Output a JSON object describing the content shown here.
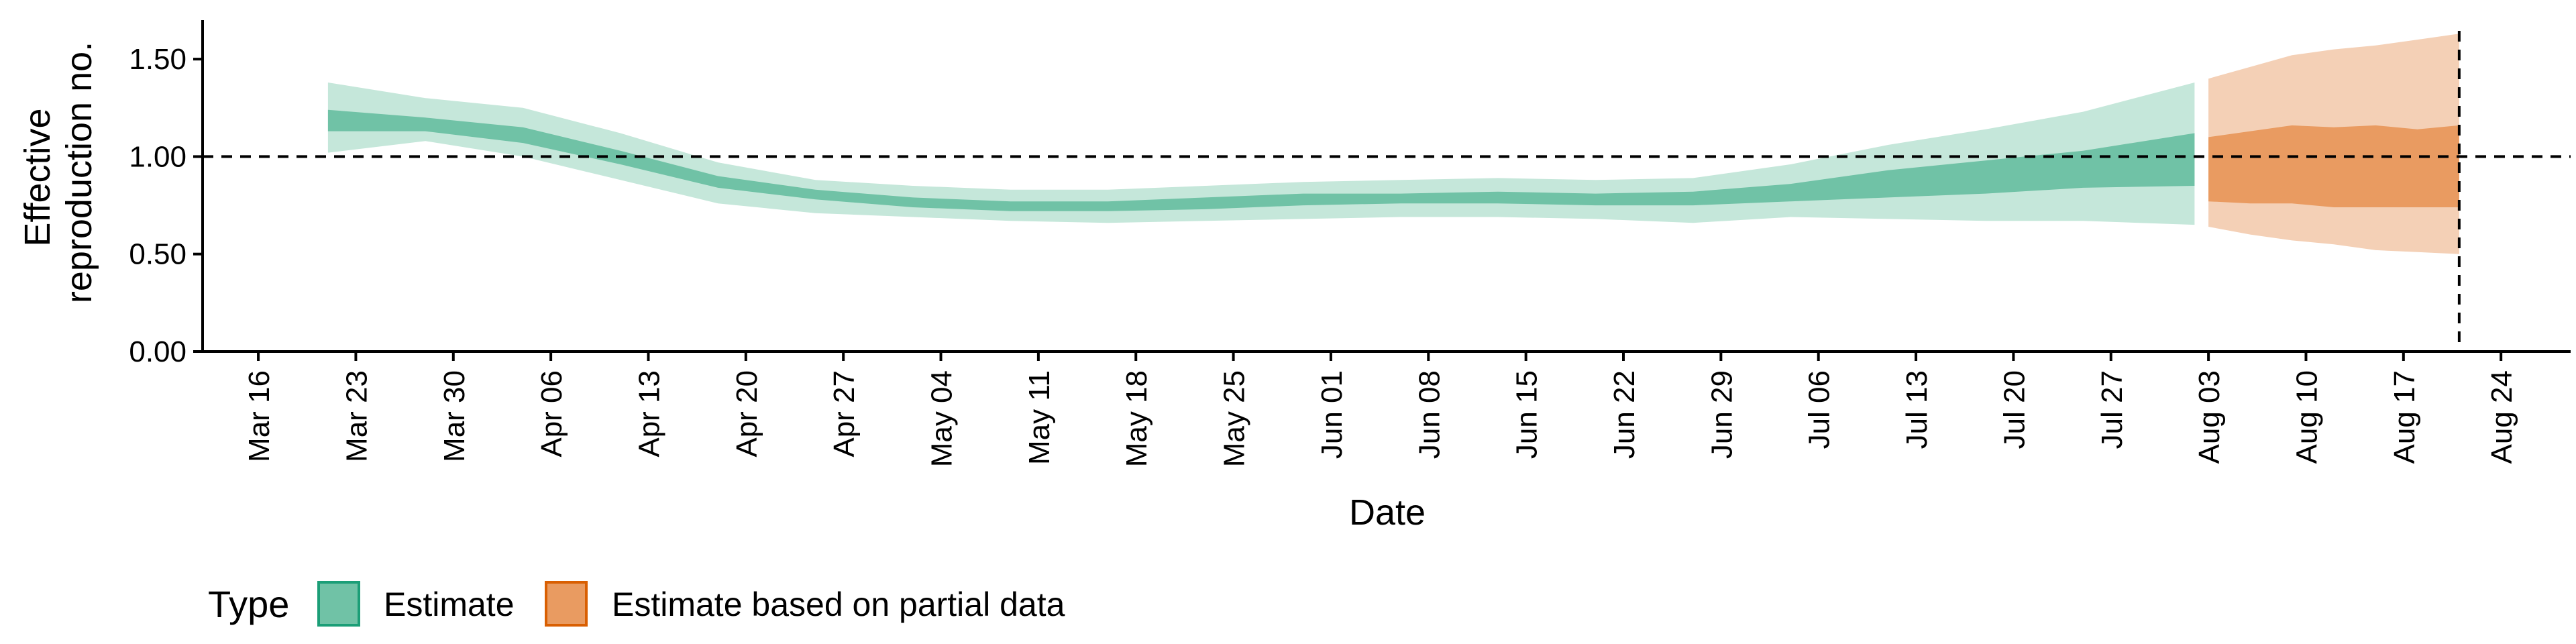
{
  "chart_data": {
    "type": "area",
    "xlabel": "Date",
    "ylabel": [
      "Effective",
      "reproduction no."
    ],
    "ylim": [
      0,
      1.7
    ],
    "yticks": [
      "0.00",
      "0.50",
      "1.00",
      "1.50"
    ],
    "xlim": [
      "2020-03-12",
      "2020-08-29"
    ],
    "xticks": [
      "Mar 16",
      "Mar 23",
      "Mar 30",
      "Apr 06",
      "Apr 13",
      "Apr 20",
      "Apr 27",
      "May 04",
      "May 11",
      "May 18",
      "May 25",
      "Jun 01",
      "Jun 08",
      "Jun 15",
      "Jun 22",
      "Jun 29",
      "Jul 06",
      "Jul 13",
      "Jul 20",
      "Jul 27",
      "Aug 03",
      "Aug 10",
      "Aug 17",
      "Aug 24"
    ],
    "reference_line": {
      "y": 1.0,
      "style": "dashed"
    },
    "vertical_line": {
      "x": "2020-08-21",
      "style": "dashed"
    },
    "grid": false,
    "legend": {
      "title": "Type",
      "position": "bottom-left",
      "items": [
        {
          "label": "Estimate",
          "fill": "#70c2a6",
          "border": "#1b9e77"
        },
        {
          "label": "Estimate based on partial data",
          "fill": "#e99b61",
          "border": "#d95f02"
        }
      ]
    },
    "series": [
      {
        "name": "Estimate",
        "color_outer": "#c5e7da",
        "color_inner": "#70c2a6",
        "x": [
          "2020-03-21",
          "2020-03-28",
          "2020-04-04",
          "2020-04-11",
          "2020-04-18",
          "2020-04-25",
          "2020-05-02",
          "2020-05-09",
          "2020-05-16",
          "2020-05-23",
          "2020-05-30",
          "2020-06-06",
          "2020-06-13",
          "2020-06-20",
          "2020-06-27",
          "2020-07-04",
          "2020-07-11",
          "2020-07-18",
          "2020-07-25",
          "2020-08-02"
        ],
        "lower_outer": [
          1.02,
          1.08,
          1.0,
          0.88,
          0.76,
          0.71,
          0.69,
          0.67,
          0.66,
          0.67,
          0.68,
          0.69,
          0.69,
          0.68,
          0.66,
          0.69,
          0.68,
          0.67,
          0.67,
          0.65
        ],
        "lower_inner": [
          1.13,
          1.13,
          1.07,
          0.96,
          0.84,
          0.78,
          0.74,
          0.72,
          0.72,
          0.73,
          0.75,
          0.76,
          0.76,
          0.75,
          0.75,
          0.77,
          0.79,
          0.81,
          0.84,
          0.85
        ],
        "upper_inner": [
          1.24,
          1.2,
          1.15,
          1.03,
          0.9,
          0.83,
          0.79,
          0.77,
          0.77,
          0.79,
          0.81,
          0.81,
          0.82,
          0.81,
          0.82,
          0.86,
          0.93,
          0.98,
          1.03,
          1.12
        ],
        "upper_outer": [
          1.38,
          1.3,
          1.25,
          1.12,
          0.97,
          0.88,
          0.85,
          0.83,
          0.83,
          0.85,
          0.87,
          0.88,
          0.89,
          0.88,
          0.89,
          0.96,
          1.06,
          1.14,
          1.23,
          1.38
        ]
      },
      {
        "name": "Estimate based on partial data",
        "color_outer": "#f4d0b6",
        "color_inner": "#e99b61",
        "x": [
          "2020-08-03",
          "2020-08-06",
          "2020-08-09",
          "2020-08-12",
          "2020-08-15",
          "2020-08-18",
          "2020-08-21"
        ],
        "lower_outer": [
          0.64,
          0.6,
          0.57,
          0.55,
          0.52,
          0.51,
          0.5
        ],
        "lower_inner": [
          0.77,
          0.76,
          0.76,
          0.74,
          0.74,
          0.74,
          0.74
        ],
        "upper_inner": [
          1.1,
          1.13,
          1.16,
          1.15,
          1.16,
          1.14,
          1.16
        ],
        "upper_outer": [
          1.4,
          1.46,
          1.52,
          1.55,
          1.57,
          1.6,
          1.63
        ]
      }
    ]
  }
}
